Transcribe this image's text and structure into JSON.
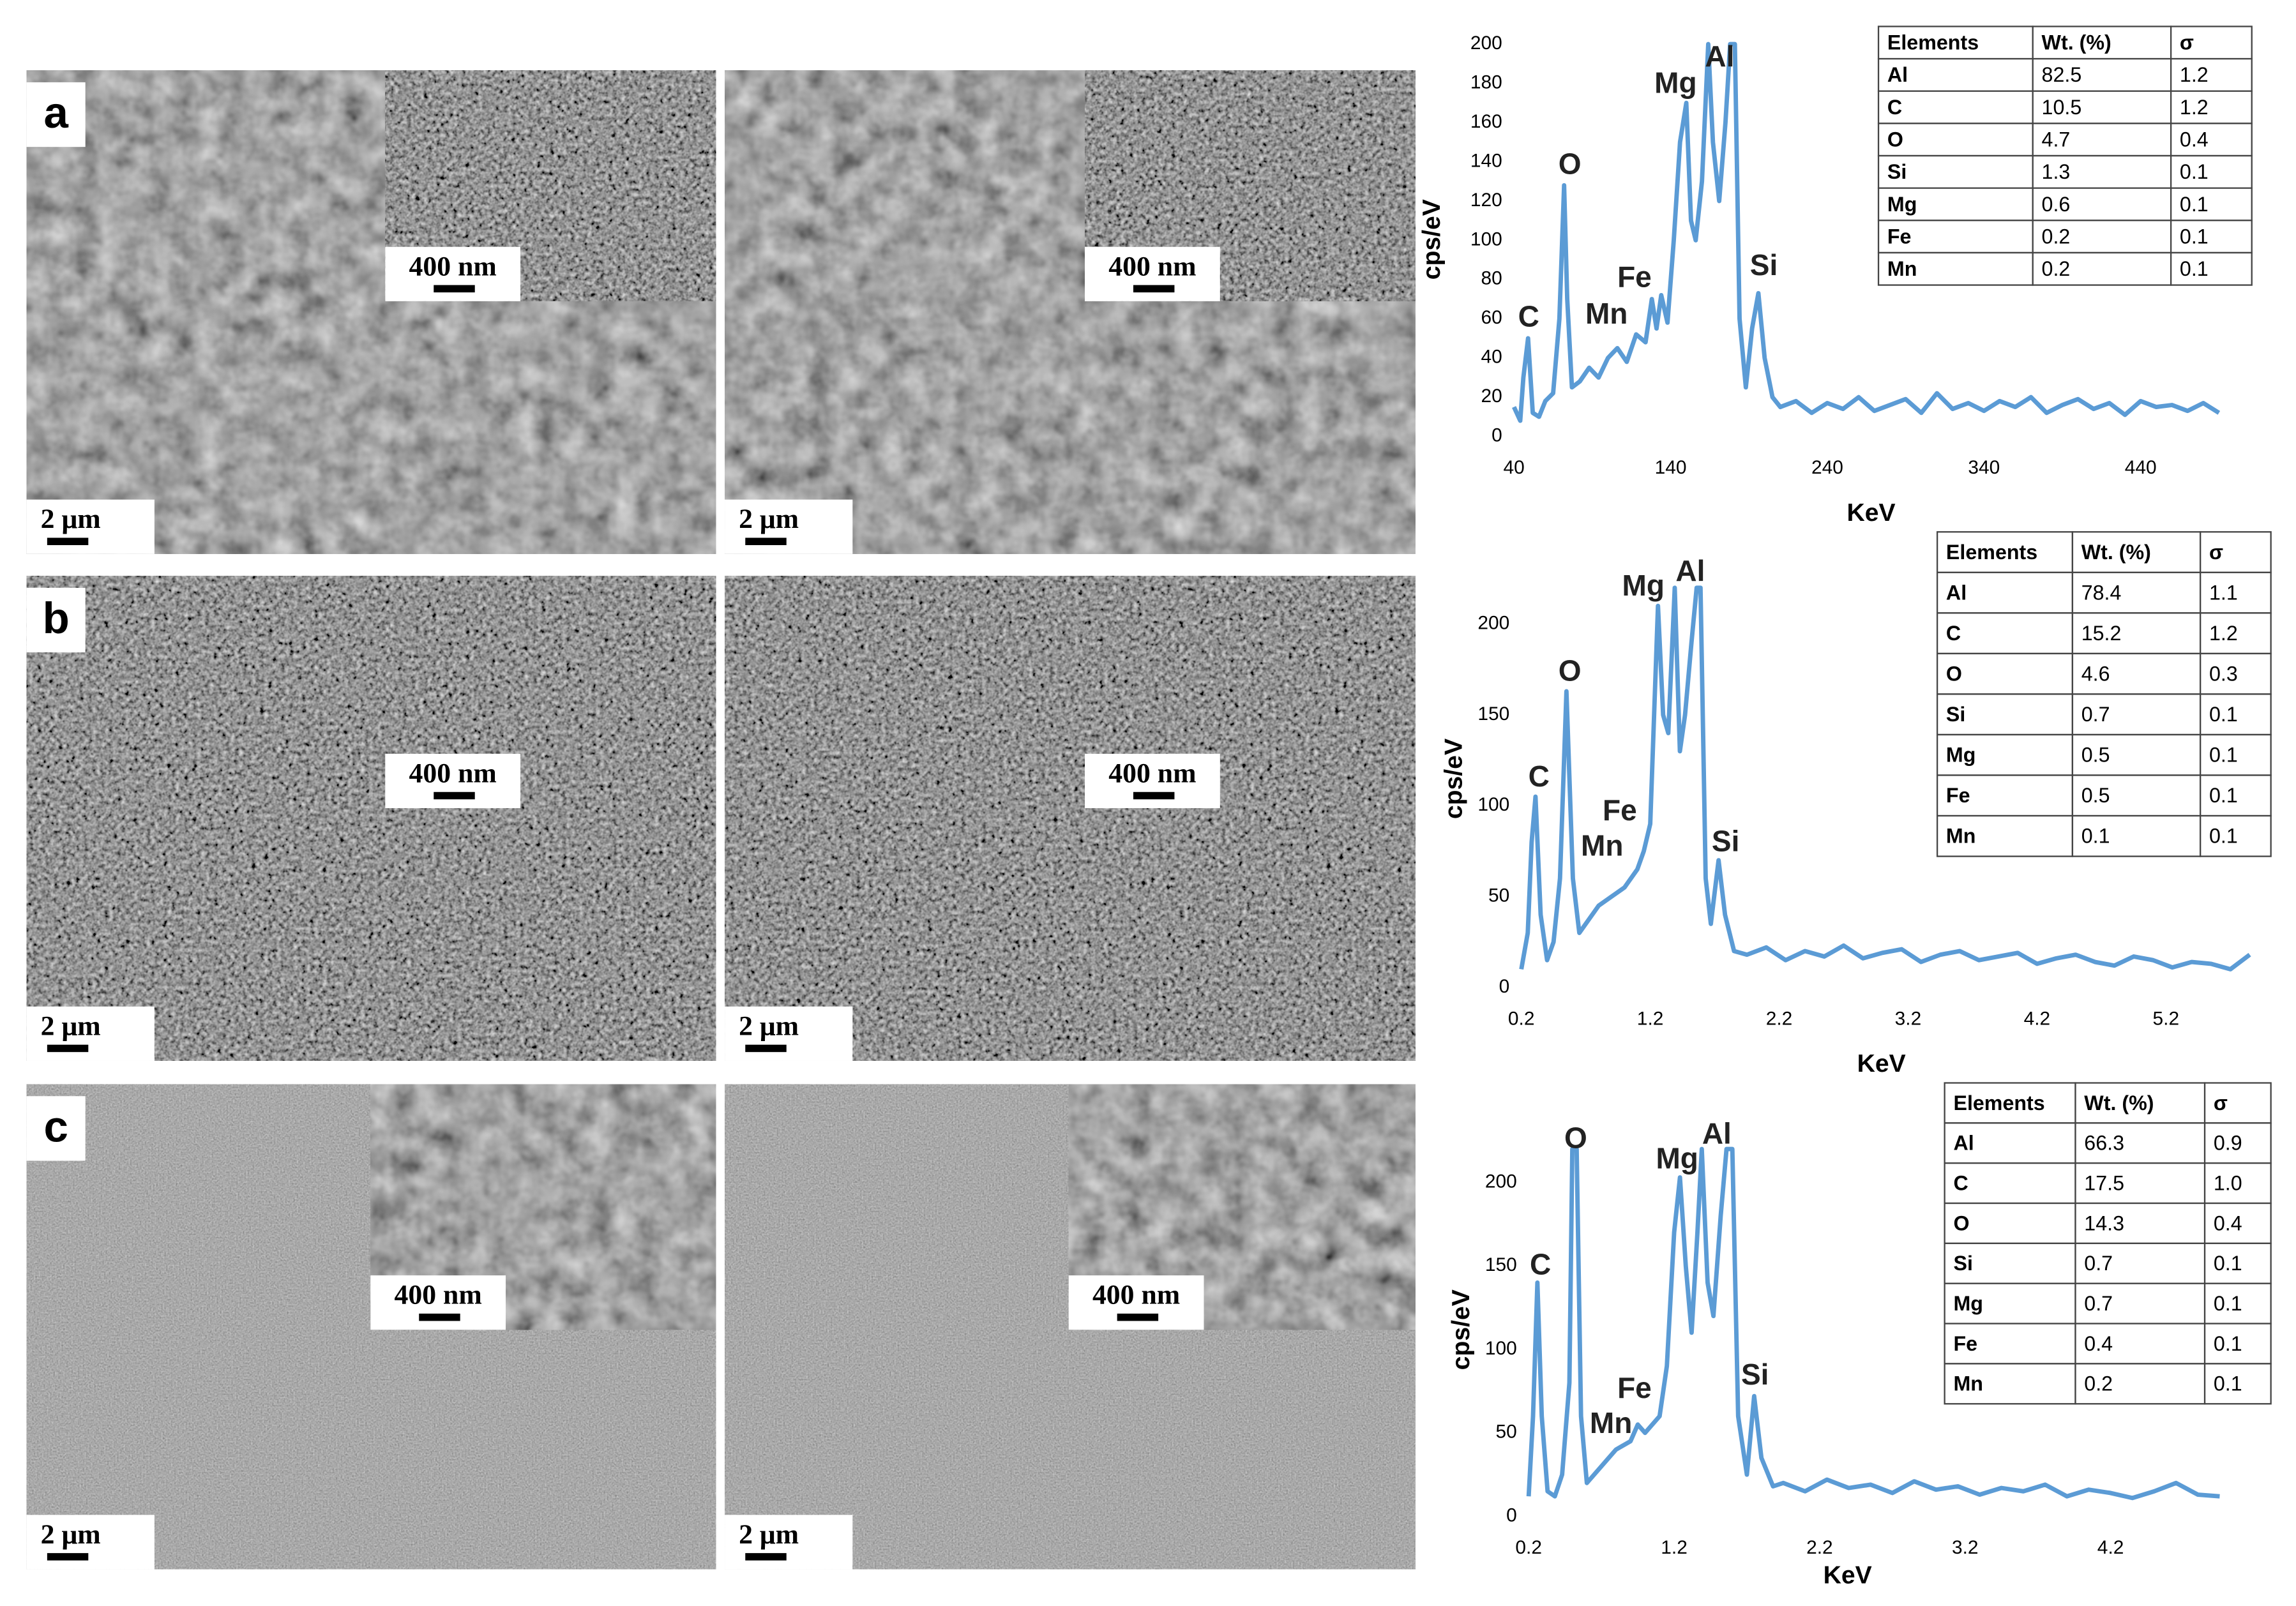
{
  "panels": [
    {
      "label": "a",
      "scale_bars": [
        "2 μm",
        "400 nm",
        "2 μm",
        "400 nm"
      ]
    },
    {
      "label": "b",
      "scale_bars": [
        "2 μm",
        "400 nm",
        "2 μm",
        "400 nm"
      ]
    },
    {
      "label": "c",
      "scale_bars": [
        "2 μm",
        "400 nm",
        "2 μm",
        "400 nm"
      ]
    }
  ],
  "chart_data": [
    {
      "type": "line",
      "x_label": "KeV",
      "y_label": "cps/eV",
      "x": [
        40,
        44,
        46,
        49,
        52,
        56,
        60,
        65,
        69,
        72,
        74,
        77,
        82,
        88,
        94,
        100,
        106,
        112,
        118,
        124,
        128,
        131,
        134,
        138,
        142,
        146,
        150,
        153,
        156,
        160,
        164,
        167,
        171,
        175,
        178,
        181,
        184,
        188,
        192,
        196,
        200,
        205,
        210,
        220,
        230,
        240,
        250,
        260,
        270,
        280,
        290,
        300,
        310,
        320,
        330,
        340,
        350,
        360,
        370,
        380,
        390,
        400,
        410,
        420,
        430,
        440,
        450,
        460,
        470,
        480,
        490
      ],
      "series": [
        {
          "color": "#5b9bd5",
          "values": [
            15,
            8,
            30,
            50,
            12,
            10,
            18,
            22,
            60,
            128,
            70,
            25,
            28,
            35,
            30,
            40,
            45,
            38,
            52,
            48,
            70,
            55,
            72,
            58,
            100,
            150,
            170,
            110,
            100,
            130,
            200,
            150,
            120,
            160,
            200,
            200,
            60,
            25,
            55,
            73,
            40,
            20,
            15,
            18,
            12,
            17,
            14,
            20,
            13,
            16,
            19,
            12,
            22,
            14,
            17,
            13,
            18,
            15,
            20,
            12,
            16,
            19,
            14,
            17,
            11,
            18,
            15,
            16,
            13,
            17,
            12
          ]
        }
      ],
      "xlim": [
        40,
        495
      ],
      "ylim": [
        0,
        200
      ],
      "xticks": [
        40,
        140,
        240,
        340,
        440
      ],
      "yticks": [
        0,
        20,
        40,
        60,
        80,
        100,
        120,
        140,
        160,
        180,
        200
      ],
      "annotations": [
        "C",
        "O",
        "Mn",
        "Fe",
        "Mg",
        "Al",
        "Si"
      ],
      "table": {
        "header": [
          "Elements",
          "Wt. (%)",
          "σ"
        ],
        "rows": [
          [
            "Al",
            "82.5",
            "1.2"
          ],
          [
            "C",
            "10.5",
            "1.2"
          ],
          [
            "O",
            "4.7",
            "0.4"
          ],
          [
            "Si",
            "1.3",
            "0.1"
          ],
          [
            "Mg",
            "0.6",
            "0.1"
          ],
          [
            "Fe",
            "0.2",
            "0.1"
          ],
          [
            "Mn",
            "0.2",
            "0.1"
          ]
        ]
      }
    },
    {
      "type": "line",
      "x_label": "KeV",
      "y_label": "cps/eV",
      "x": [
        0.2,
        0.25,
        0.28,
        0.31,
        0.35,
        0.4,
        0.45,
        0.5,
        0.55,
        0.6,
        0.65,
        0.7,
        0.8,
        0.9,
        1.0,
        1.1,
        1.15,
        1.2,
        1.26,
        1.3,
        1.34,
        1.39,
        1.43,
        1.47,
        1.52,
        1.56,
        1.59,
        1.63,
        1.67,
        1.73,
        1.78,
        1.85,
        1.95,
        2.1,
        2.25,
        2.4,
        2.55,
        2.7,
        2.85,
        3.0,
        3.15,
        3.3,
        3.45,
        3.6,
        3.75,
        3.9,
        4.05,
        4.2,
        4.35,
        4.5,
        4.65,
        4.8,
        4.95,
        5.1,
        5.25,
        5.4,
        5.55,
        5.7,
        5.85
      ],
      "series": [
        {
          "color": "#5b9bd5",
          "values": [
            10,
            30,
            80,
            105,
            40,
            15,
            25,
            60,
            163,
            60,
            30,
            35,
            45,
            50,
            55,
            65,
            75,
            90,
            210,
            150,
            140,
            220,
            130,
            150,
            190,
            220,
            220,
            60,
            35,
            70,
            40,
            20,
            18,
            22,
            15,
            20,
            17,
            23,
            16,
            19,
            21,
            14,
            18,
            20,
            15,
            17,
            19,
            13,
            16,
            18,
            14,
            12,
            17,
            15,
            11,
            14,
            13,
            10,
            18
          ]
        }
      ],
      "xlim": [
        0.2,
        5.9
      ],
      "ylim": [
        0,
        220
      ],
      "xticks": [
        0.2,
        1.2,
        2.2,
        3.2,
        4.2,
        5.2
      ],
      "yticks": [
        0,
        50,
        100,
        150,
        200
      ],
      "annotations": [
        "C",
        "O",
        "Mn",
        "Fe",
        "Mg",
        "Al",
        "Si"
      ],
      "table": {
        "header": [
          "Elements",
          "Wt. (%)",
          "σ"
        ],
        "rows": [
          [
            "Al",
            "78.4",
            "1.1"
          ],
          [
            "C",
            "15.2",
            "1.2"
          ],
          [
            "O",
            "4.6",
            "0.3"
          ],
          [
            "Si",
            "0.7",
            "0.1"
          ],
          [
            "Mg",
            "0.5",
            "0.1"
          ],
          [
            "Fe",
            "0.5",
            "0.1"
          ],
          [
            "Mn",
            "0.1",
            "0.1"
          ]
        ]
      }
    },
    {
      "type": "line",
      "x_label": "KeV",
      "y_label": "cps/eV",
      "x": [
        0.2,
        0.23,
        0.26,
        0.29,
        0.33,
        0.38,
        0.43,
        0.48,
        0.5,
        0.53,
        0.56,
        0.6,
        0.7,
        0.8,
        0.9,
        0.95,
        1.0,
        1.1,
        1.15,
        1.2,
        1.24,
        1.28,
        1.32,
        1.36,
        1.39,
        1.43,
        1.47,
        1.52,
        1.56,
        1.6,
        1.64,
        1.7,
        1.75,
        1.8,
        1.88,
        1.95,
        2.1,
        2.25,
        2.4,
        2.55,
        2.7,
        2.85,
        3.0,
        3.15,
        3.3,
        3.45,
        3.6,
        3.75,
        3.9,
        4.05,
        4.2,
        4.35,
        4.5,
        4.65,
        4.8,
        4.95
      ],
      "series": [
        {
          "color": "#5b9bd5",
          "values": [
            12,
            60,
            140,
            60,
            15,
            12,
            25,
            80,
            220,
            220,
            60,
            20,
            30,
            40,
            45,
            55,
            50,
            60,
            90,
            170,
            203,
            150,
            110,
            170,
            220,
            140,
            120,
            180,
            220,
            220,
            60,
            25,
            72,
            35,
            18,
            20,
            15,
            22,
            17,
            19,
            14,
            21,
            16,
            18,
            13,
            17,
            15,
            19,
            12,
            16,
            14,
            11,
            15,
            20,
            13,
            12
          ]
        }
      ],
      "xlim": [
        0.2,
        5.12
      ],
      "ylim": [
        0,
        220
      ],
      "xticks": [
        0.2,
        1.2,
        2.2,
        3.2,
        4.2
      ],
      "yticks": [
        0,
        50,
        100,
        150,
        200
      ],
      "annotations": [
        "C",
        "O",
        "Mn",
        "Fe",
        "Mg",
        "Al",
        "Si"
      ],
      "table": {
        "header": [
          "Elements",
          "Wt. (%)",
          "σ"
        ],
        "rows": [
          [
            "Al",
            "66.3",
            "0.9"
          ],
          [
            "C",
            "17.5",
            "1.0"
          ],
          [
            "O",
            "14.3",
            "0.4"
          ],
          [
            "Si",
            "0.7",
            "0.1"
          ],
          [
            "Mg",
            "0.7",
            "0.1"
          ],
          [
            "Fe",
            "0.4",
            "0.1"
          ],
          [
            "Mn",
            "0.2",
            "0.1"
          ]
        ]
      }
    }
  ]
}
